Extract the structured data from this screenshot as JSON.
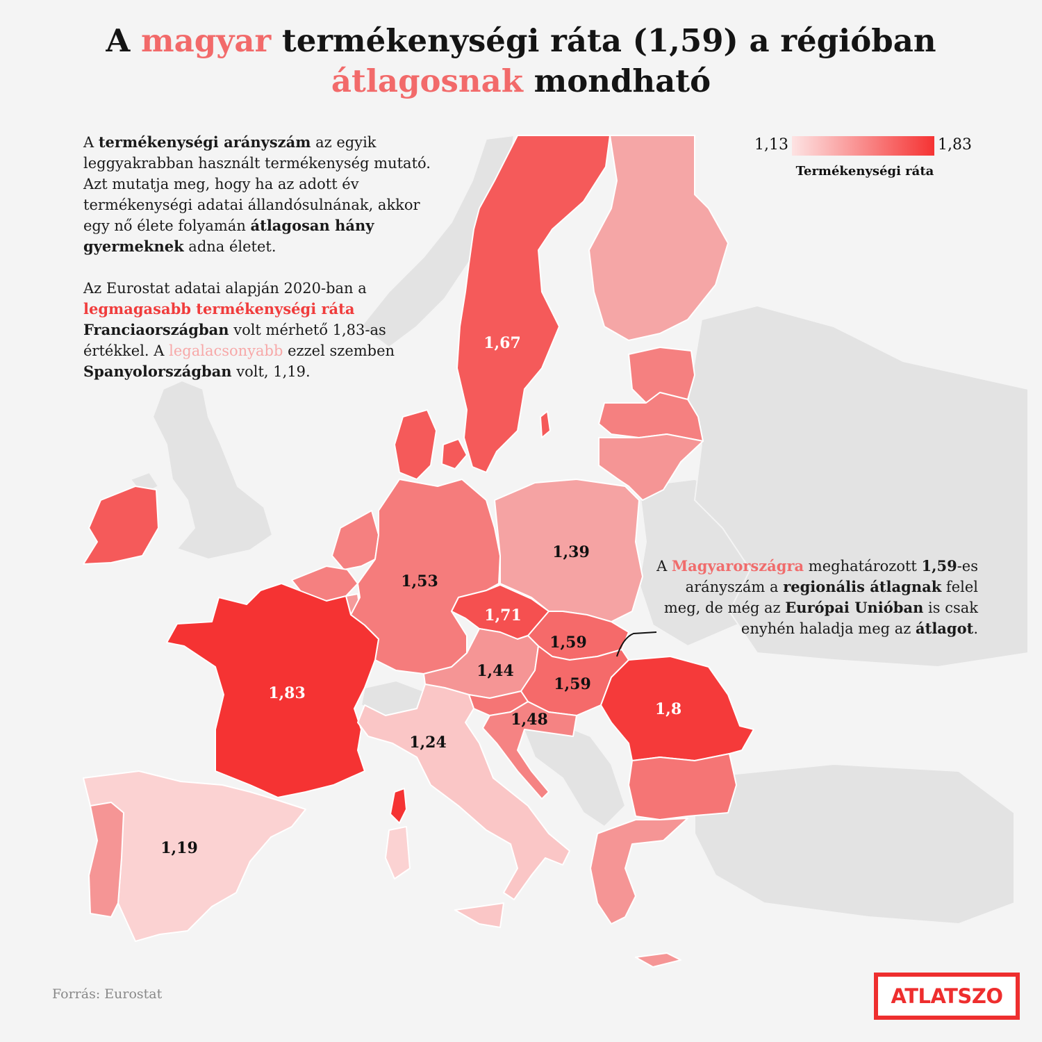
{
  "title": {
    "line1_pre": "A ",
    "line1_hl": "magyar",
    "line1_post": " termékenységi ráta (1,59) a régióban",
    "line2_hl": "átlagosnak",
    "line2_post": " mondható"
  },
  "intro": {
    "p1": [
      {
        "t": "A ",
        "s": ""
      },
      {
        "t": "termékenységi arányszám",
        "s": "b"
      },
      {
        "t": " az egyik leggyakrabban használt termékenység mutató. Azt mutatja meg, hogy ha az adott év termékenységi adatai állandósulnának, akkor egy nő élete folyamán ",
        "s": ""
      },
      {
        "t": "átlagosan hány gyermeknek",
        "s": "b"
      },
      {
        "t": " adna életet.",
        "s": ""
      }
    ],
    "p2": [
      {
        "t": "Az Eurostat adatai alapján 2020-ban a ",
        "s": ""
      },
      {
        "t": "legmagasabb termékenységi ráta",
        "s": "red"
      },
      {
        "t": " ",
        "s": ""
      },
      {
        "t": "Franciaországban",
        "s": "b"
      },
      {
        "t": " volt mérhető 1,83-as értékkel. A ",
        "s": ""
      },
      {
        "t": "legalacsonyabb",
        "s": "pink"
      },
      {
        "t": " ezzel szemben ",
        "s": ""
      },
      {
        "t": "Spanyolországban",
        "s": "b"
      },
      {
        "t": " volt, 1,19.",
        "s": ""
      }
    ]
  },
  "hu_note": [
    {
      "t": "A ",
      "s": ""
    },
    {
      "t": "Magyarországra",
      "s": "hu"
    },
    {
      "t": " meghatározott ",
      "s": ""
    },
    {
      "t": "1,59",
      "s": "b"
    },
    {
      "t": "-es arányszám a ",
      "s": ""
    },
    {
      "t": "regionális átlagnak",
      "s": "b"
    },
    {
      "t": " felel meg, de még az ",
      "s": ""
    },
    {
      "t": "Európai Unióban",
      "s": "b"
    },
    {
      "t": " is csak enyhén haladja meg az ",
      "s": ""
    },
    {
      "t": "átlagot",
      "s": "b"
    },
    {
      "t": ".",
      "s": ""
    }
  ],
  "legend": {
    "min_label": "1,13",
    "max_label": "1,83",
    "min": 1.13,
    "max": 1.83,
    "label": "Termékenységi ráta",
    "color_low": "#fde3e3",
    "color_high": "#f53333"
  },
  "source": "Forrás: Eurostat",
  "logo": "ATLATSZO",
  "colors": {
    "background": "#f4f4f4",
    "non_member": "#e3e3e3",
    "border": "#ffffff",
    "title_highlight": "#f26a6a"
  },
  "countries": [
    {
      "id": "france",
      "label": "1,83",
      "value": 1.83,
      "color": "#f53333"
    },
    {
      "id": "romania",
      "label": "1,8",
      "value": 1.8,
      "color": "#f53a3a"
    },
    {
      "id": "czechia",
      "label": "1,71",
      "value": 1.71,
      "color": "#f55050"
    },
    {
      "id": "sweden",
      "label": "1,67",
      "value": 1.67,
      "color": "#f55a5a"
    },
    {
      "id": "hungary",
      "label": "1,59",
      "value": 1.59,
      "color": "#f56a6a"
    },
    {
      "id": "slovakia",
      "label": "1,59",
      "value": 1.59,
      "color": "#f56a6a"
    },
    {
      "id": "germany",
      "label": "1,53",
      "value": 1.53,
      "color": "#f57c7c"
    },
    {
      "id": "croatia",
      "label": "1,48",
      "value": 1.48,
      "color": "#f58383"
    },
    {
      "id": "austria",
      "label": "1,44",
      "value": 1.44,
      "color": "#f59595"
    },
    {
      "id": "poland",
      "label": "1,39",
      "value": 1.39,
      "color": "#f5a3a3"
    },
    {
      "id": "italy",
      "label": "1,24",
      "value": 1.24,
      "color": "#fac6c6"
    },
    {
      "id": "spain",
      "label": "1,19",
      "value": 1.19,
      "color": "#fbd2d2"
    }
  ],
  "unlabeled_countries": [
    {
      "id": "ireland",
      "color": "#f55a5a"
    },
    {
      "id": "denmark",
      "color": "#f55a5a"
    },
    {
      "id": "finland",
      "color": "#f5a6a6"
    },
    {
      "id": "estonia",
      "color": "#f58080"
    },
    {
      "id": "latvia",
      "color": "#f58080"
    },
    {
      "id": "lithuania",
      "color": "#f59595"
    },
    {
      "id": "netherlands",
      "color": "#f58080"
    },
    {
      "id": "belgium",
      "color": "#f58080"
    },
    {
      "id": "luxembourg",
      "color": "#f59a9a"
    },
    {
      "id": "slovenia",
      "color": "#f57575"
    },
    {
      "id": "bulgaria",
      "color": "#f57575"
    },
    {
      "id": "greece",
      "color": "#f59595"
    },
    {
      "id": "portugal",
      "color": "#f59595"
    },
    {
      "id": "corsica",
      "color": "#f53333"
    },
    {
      "id": "sardinia",
      "color": "#fbd2d2"
    },
    {
      "id": "sicily",
      "color": "#fac6c6"
    },
    {
      "id": "crete",
      "color": "#f59595"
    },
    {
      "id": "gotland",
      "color": "#f55a5a"
    },
    {
      "id": "zealand",
      "color": "#f55a5a"
    }
  ]
}
